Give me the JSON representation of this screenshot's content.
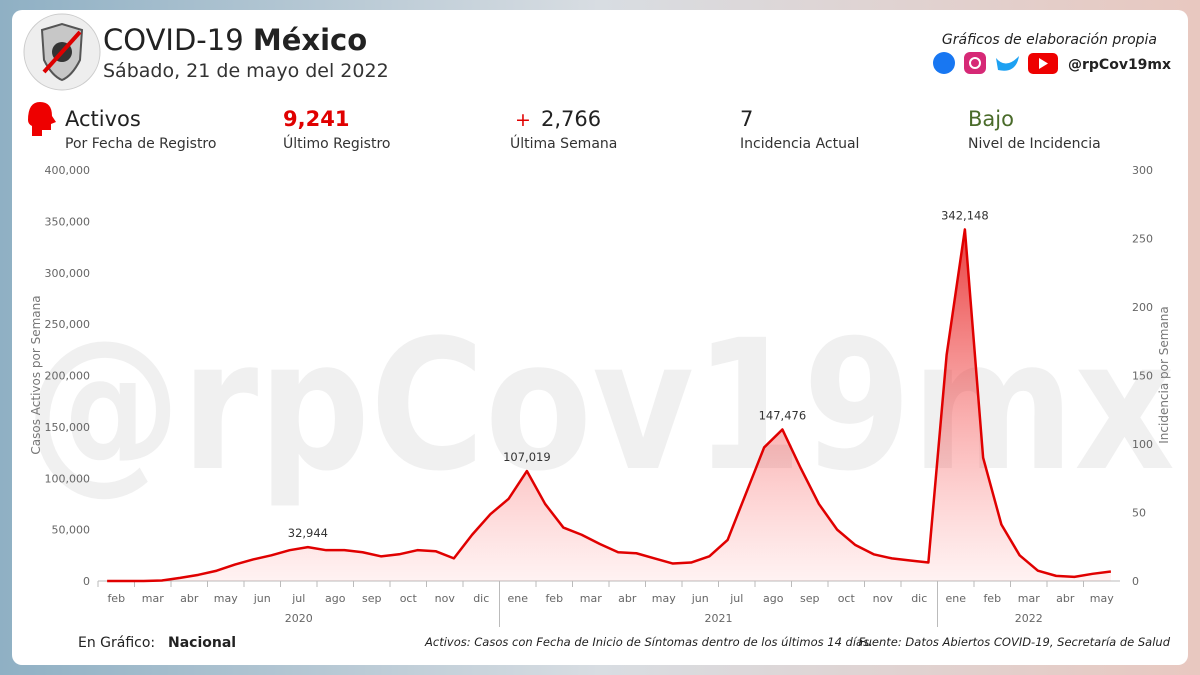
{
  "header": {
    "title": "COVID-19",
    "title_bold": "México",
    "subtitle": "Sábado, 21 de mayo del 2022",
    "tagline": "Gráficos de elaboración propia",
    "handle": "@rpCov19mx"
  },
  "stats": [
    {
      "value": "Activos",
      "label": "Por Fecha de Registro"
    },
    {
      "value": "9,241",
      "label": "Último Registro"
    },
    {
      "sign": "+",
      "value": "2,766",
      "label": "Última Semana"
    },
    {
      "value": "7",
      "label": "Incidencia Actual"
    },
    {
      "value": "Bajo",
      "label": "Nivel de Incidencia"
    }
  ],
  "chart_data": {
    "type": "area",
    "watermark": "@rpCov19mx",
    "color": "#e00000",
    "ylabel": "Casos Activos por Semana",
    "y2label": "Incidencia por Semana",
    "categories": [
      "feb",
      null,
      "mar",
      null,
      "abr",
      null,
      "may",
      null,
      "jun",
      null,
      "jul",
      null,
      "ago",
      null,
      "sep",
      null,
      "oct",
      null,
      "nov",
      null,
      "dic",
      null,
      "ene",
      null,
      "feb",
      null,
      "mar",
      null,
      "abr",
      null,
      "may",
      null,
      "jun",
      null,
      "jul",
      null,
      "ago",
      null,
      "sep",
      null,
      "oct",
      null,
      "nov",
      null,
      "dic",
      null,
      "ene",
      null,
      "feb",
      null,
      "mar",
      null,
      "abr",
      null,
      "may",
      null
    ],
    "years": [
      "2020",
      "2021",
      "2022"
    ],
    "values": [
      0,
      0,
      0,
      500,
      3000,
      6000,
      10000,
      16000,
      21000,
      25000,
      30000,
      32944,
      30000,
      30000,
      28000,
      24000,
      26000,
      30000,
      29000,
      22000,
      45000,
      65000,
      80000,
      107019,
      75000,
      52000,
      45000,
      36000,
      28000,
      27000,
      22000,
      17000,
      18000,
      24000,
      40000,
      85000,
      130000,
      147476,
      110000,
      75000,
      50000,
      35000,
      26000,
      22000,
      20000,
      18000,
      220000,
      342148,
      120000,
      55000,
      25000,
      10000,
      5000,
      4000,
      7000,
      9241
    ],
    "value_labels": [
      null,
      null,
      null,
      null,
      null,
      null,
      null,
      null,
      null,
      null,
      null,
      "32,944",
      null,
      null,
      null,
      null,
      null,
      null,
      null,
      null,
      null,
      null,
      null,
      "107,019",
      null,
      null,
      null,
      null,
      null,
      null,
      null,
      null,
      null,
      null,
      null,
      null,
      null,
      "147,476",
      null,
      null,
      null,
      null,
      null,
      null,
      null,
      null,
      null,
      "342,148",
      null,
      null,
      null,
      null,
      null,
      null,
      null,
      null
    ],
    "ylim": [
      0,
      400000
    ],
    "yticks": [
      0,
      {
        "value": 50000,
        "label": "50,000"
      },
      {
        "value": 100000,
        "label": "100,000"
      },
      {
        "value": 150000,
        "label": "150,000"
      },
      {
        "value": 200000,
        "label": "200,000"
      },
      {
        "value": 250000,
        "label": "250,000"
      },
      {
        "value": 300000,
        "label": "300,000"
      },
      {
        "value": 350000,
        "label": "350,000"
      },
      {
        "value": 400000,
        "label": "400,000"
      }
    ],
    "y2lim": [
      0,
      300
    ],
    "y2ticks": [
      0,
      50,
      100,
      150,
      200,
      250,
      300
    ],
    "grid": false
  },
  "footer": {
    "scope_label": "En Gráfico:",
    "scope": "Nacional",
    "note": "Activos: Casos con Fecha de Inicio de Síntomas dentro de los últimos 14 días.",
    "source": "Fuente: Datos Abiertos COVID-19, Secretaría de Salud"
  }
}
